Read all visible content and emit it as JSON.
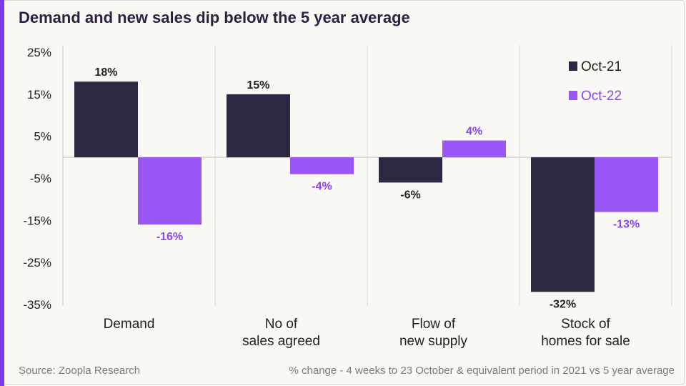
{
  "title": "Demand and new sales dip below the 5 year average",
  "source": "Source: Zoopla Research",
  "footnote": "% change - 4 weeks to 23 October & equivalent period in 2021 vs 5 year average",
  "colors": {
    "accent": "#7c3aed",
    "series_dark": "#2e2742",
    "series_purple": "#9a55f7",
    "label_purple": "#8b44f0"
  },
  "chart_data": {
    "type": "bar",
    "categories": [
      [
        "Demand"
      ],
      [
        "No of",
        "sales agreed"
      ],
      [
        "Flow of",
        "new supply"
      ],
      [
        "Stock of",
        "homes for sale"
      ]
    ],
    "series": [
      {
        "name": "Oct-21",
        "values": [
          18,
          15,
          -6,
          -32
        ],
        "labels": [
          "18%",
          "15%",
          "-6%",
          "-32%"
        ],
        "color": "#2e2742",
        "label_color": "#222222"
      },
      {
        "name": "Oct-22",
        "values": [
          -16,
          -4,
          4,
          -13
        ],
        "labels": [
          "-16%",
          "-4%",
          "4%",
          "-13%"
        ],
        "color": "#9a55f7",
        "label_color": "#8b44f0"
      }
    ],
    "yticks": [
      25,
      15,
      5,
      -5,
      -15,
      -25,
      -35
    ],
    "ytick_labels": [
      "25%",
      "15%",
      "5%",
      "-5%",
      "-15%",
      "-25%",
      "-35%"
    ],
    "ylim": [
      -35,
      25
    ],
    "legend_position": "top-right",
    "grid": "vertical separators"
  }
}
